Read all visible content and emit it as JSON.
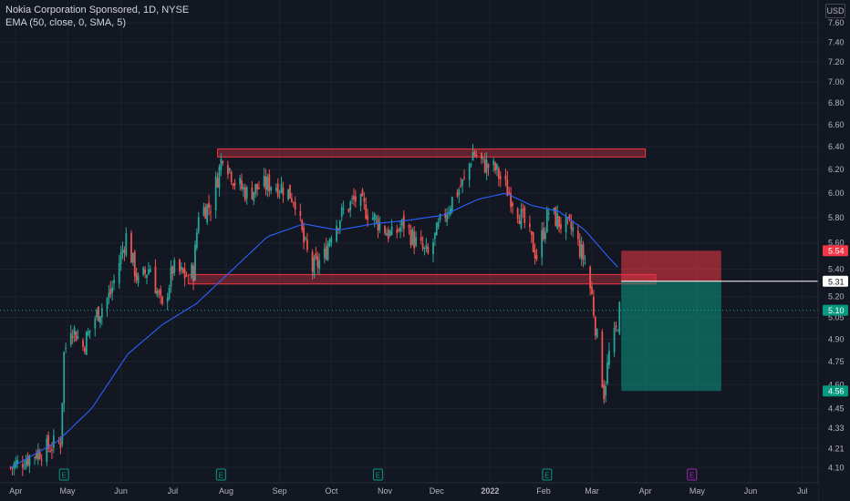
{
  "header": {
    "symbol_line": "Nokia Corporation Sponsored, 1D, NYSE",
    "indicator_line": "EMA (50, close, 0, SMA, 5)",
    "currency": "USD"
  },
  "colors": {
    "background": "#131722",
    "grid": "#1e222d",
    "axis_text": "#b2b5be",
    "up": "#26a69a",
    "down": "#ef5350",
    "ema": "#2962ff",
    "zone_fill": "rgba(242,54,69,0.35)",
    "zone_border": "#f23645",
    "stop_fill": "rgba(242,54,69,0.55)",
    "target_fill": "rgba(8,153,129,0.55)",
    "earnings_green": "#089981",
    "earnings_purple": "#9c27b0"
  },
  "chart_data": {
    "type": "candlestick",
    "y_axis": {
      "ticks": [
        "4.10",
        "4.21",
        "4.33",
        "4.45",
        "4.60",
        "4.75",
        "4.90",
        "5.05",
        "5.20",
        "5.40",
        "5.60",
        "5.80",
        "6.00",
        "6.20",
        "6.40",
        "6.60",
        "6.80",
        "7.00",
        "7.20",
        "7.40",
        "7.60"
      ],
      "range": [
        4.05,
        7.65
      ],
      "scale": "log"
    },
    "x_axis": {
      "ticks": [
        "Apr",
        "May",
        "Jun",
        "Jul",
        "Aug",
        "Sep",
        "Oct",
        "Nov",
        "Dec",
        "2022",
        "Feb",
        "Mar",
        "Apr",
        "May",
        "Jun",
        "Jul"
      ],
      "bold_ticks": [
        "2022"
      ],
      "range": [
        "2021-03-25",
        "2022-07-08"
      ]
    },
    "close_anchors": [
      [
        "2021-03-29",
        4.1
      ],
      [
        "2021-04-12",
        4.18
      ],
      [
        "2021-04-27",
        4.25
      ],
      [
        "2021-04-29",
        4.8
      ],
      [
        "2021-05-03",
        5.0
      ],
      [
        "2021-05-10",
        4.85
      ],
      [
        "2021-05-17",
        5.05
      ],
      [
        "2021-05-26",
        5.22
      ],
      [
        "2021-06-04",
        5.65
      ],
      [
        "2021-06-11",
        5.3
      ],
      [
        "2021-06-18",
        5.42
      ],
      [
        "2021-06-25",
        5.1
      ],
      [
        "2021-07-01",
        5.4
      ],
      [
        "2021-07-08",
        5.35
      ],
      [
        "2021-07-13",
        5.38
      ],
      [
        "2021-07-16",
        5.85
      ],
      [
        "2021-07-23",
        5.9
      ],
      [
        "2021-07-28",
        6.2
      ],
      [
        "2021-07-30",
        6.35
      ],
      [
        "2021-08-06",
        6.1
      ],
      [
        "2021-08-13",
        6.0
      ],
      [
        "2021-08-20",
        6.05
      ],
      [
        "2021-08-27",
        6.08
      ],
      [
        "2021-09-03",
        6.05
      ],
      [
        "2021-09-10",
        5.95
      ],
      [
        "2021-09-15",
        5.6
      ],
      [
        "2021-09-20",
        5.4
      ],
      [
        "2021-09-27",
        5.5
      ],
      [
        "2021-10-01",
        5.7
      ],
      [
        "2021-10-08",
        5.85
      ],
      [
        "2021-10-15",
        5.95
      ],
      [
        "2021-10-22",
        5.85
      ],
      [
        "2021-10-29",
        5.75
      ],
      [
        "2021-11-05",
        5.65
      ],
      [
        "2021-11-12",
        5.75
      ],
      [
        "2021-11-19",
        5.6
      ],
      [
        "2021-11-26",
        5.5
      ],
      [
        "2021-12-03",
        5.75
      ],
      [
        "2021-12-10",
        5.95
      ],
      [
        "2021-12-17",
        6.1
      ],
      [
        "2021-12-22",
        6.35
      ],
      [
        "2021-12-28",
        6.25
      ],
      [
        "2022-01-04",
        6.2
      ],
      [
        "2022-01-10",
        6.05
      ],
      [
        "2022-01-14",
        5.95
      ],
      [
        "2022-01-21",
        5.75
      ],
      [
        "2022-01-28",
        5.5
      ],
      [
        "2022-02-04",
        5.85
      ],
      [
        "2022-02-11",
        5.75
      ],
      [
        "2022-02-18",
        5.7
      ],
      [
        "2022-02-25",
        5.45
      ],
      [
        "2022-03-01",
        5.2
      ],
      [
        "2022-03-04",
        4.9
      ],
      [
        "2022-03-08",
        4.55
      ],
      [
        "2022-03-11",
        4.8
      ],
      [
        "2022-03-15",
        4.95
      ],
      [
        "2022-03-17",
        5.1
      ]
    ],
    "ema_anchors": [
      [
        "2021-03-29",
        4.1
      ],
      [
        "2021-04-25",
        4.25
      ],
      [
        "2021-05-15",
        4.45
      ],
      [
        "2021-06-05",
        4.8
      ],
      [
        "2021-06-25",
        5.0
      ],
      [
        "2021-07-15",
        5.15
      ],
      [
        "2021-08-05",
        5.4
      ],
      [
        "2021-08-25",
        5.65
      ],
      [
        "2021-09-15",
        5.75
      ],
      [
        "2021-10-05",
        5.7
      ],
      [
        "2021-10-25",
        5.75
      ],
      [
        "2021-11-15",
        5.78
      ],
      [
        "2021-12-05",
        5.82
      ],
      [
        "2021-12-25",
        5.95
      ],
      [
        "2022-01-10",
        6.0
      ],
      [
        "2022-01-25",
        5.9
      ],
      [
        "2022-02-10",
        5.85
      ],
      [
        "2022-02-25",
        5.7
      ],
      [
        "2022-03-10",
        5.5
      ],
      [
        "2022-03-17",
        5.4
      ]
    ],
    "resistance_zone": {
      "from": "2021-07-27",
      "to": "2022-04-01",
      "low": 6.31,
      "high": 6.38
    },
    "support_zone": {
      "from": "2021-07-10",
      "to": "2022-04-07",
      "low": 5.29,
      "high": 5.36
    },
    "position": {
      "from": "2022-03-18",
      "to": "2022-05-15",
      "stop": 5.54,
      "entry": 5.31,
      "target": 4.56
    },
    "last_price": 5.1,
    "price_labels": [
      {
        "text": "5.54",
        "value": 5.54,
        "bg": "#f23645",
        "fg": "#ffffff"
      },
      {
        "text": "5.31",
        "value": 5.31,
        "bg": "#ffffff",
        "fg": "#131722"
      },
      {
        "text": "5.10",
        "value": 5.1,
        "bg": "#089981",
        "fg": "#ffffff"
      },
      {
        "text": "4.56",
        "value": 4.56,
        "bg": "#089981",
        "fg": "#ffffff"
      }
    ],
    "earnings_markers": [
      {
        "date": "2021-04-29",
        "label": "E",
        "color": "#089981"
      },
      {
        "date": "2021-07-29",
        "label": "E",
        "color": "#089981"
      },
      {
        "date": "2021-10-28",
        "label": "E",
        "color": "#089981"
      },
      {
        "date": "2022-02-03",
        "label": "E",
        "color": "#089981"
      },
      {
        "date": "2022-04-28",
        "label": "E",
        "color": "#9c27b0"
      }
    ]
  }
}
